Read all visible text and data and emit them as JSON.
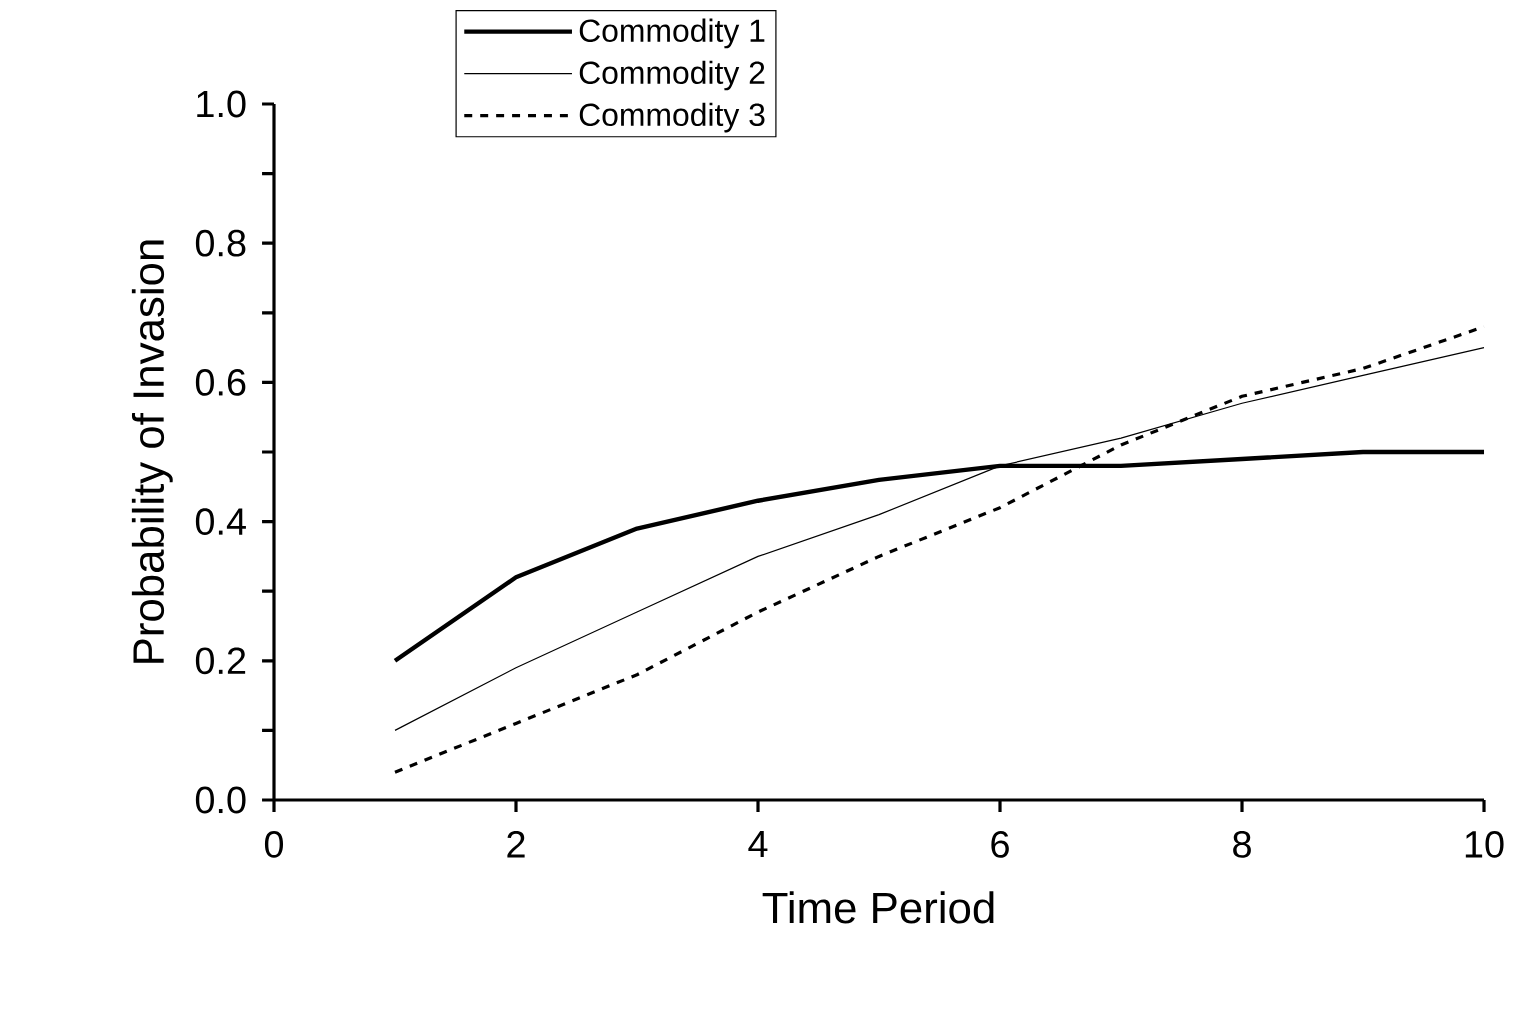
{
  "chart_data": {
    "type": "line",
    "xlabel": "Time Period",
    "ylabel": "Probability of Invasion",
    "x": [
      1,
      2,
      3,
      4,
      5,
      6,
      7,
      8,
      9,
      10
    ],
    "series": [
      {
        "name": "Commodity 1",
        "color": "#000000",
        "line_style": "solid",
        "values": [
          0.2,
          0.32,
          0.39,
          0.43,
          0.46,
          0.48,
          0.48,
          0.49,
          0.5,
          0.5
        ]
      },
      {
        "name": "Commodity 2",
        "color": "#000000",
        "line_style": "solid",
        "values": [
          0.1,
          0.19,
          0.27,
          0.35,
          0.41,
          0.48,
          0.52,
          0.57,
          0.61,
          0.65
        ]
      },
      {
        "name": "Commodity 3",
        "color": "#000000",
        "line_style": "dashed",
        "values": [
          0.04,
          0.11,
          0.18,
          0.27,
          0.35,
          0.42,
          0.51,
          0.58,
          0.62,
          0.68
        ]
      }
    ],
    "xlim": [
      0,
      10
    ],
    "xticks": [
      0,
      2,
      4,
      6,
      8,
      10
    ],
    "ylim": [
      0,
      1
    ],
    "yticks": [
      {
        "value": 0,
        "label": "0.0"
      },
      {
        "value": 0.1,
        "label": null
      },
      {
        "value": 0.2,
        "label": "0.2"
      },
      {
        "value": 0.3,
        "label": null
      },
      {
        "value": 0.4,
        "label": "0.4"
      },
      {
        "value": 0.5,
        "label": null
      },
      {
        "value": 0.6,
        "label": "0.6"
      },
      {
        "value": 0.7,
        "label": null
      },
      {
        "value": 0.8,
        "label": "0.8"
      },
      {
        "value": 0.9,
        "label": null
      },
      {
        "value": 1,
        "label": "1.0"
      }
    ],
    "legend": "top left",
    "grid": false,
    "marker": "none"
  }
}
